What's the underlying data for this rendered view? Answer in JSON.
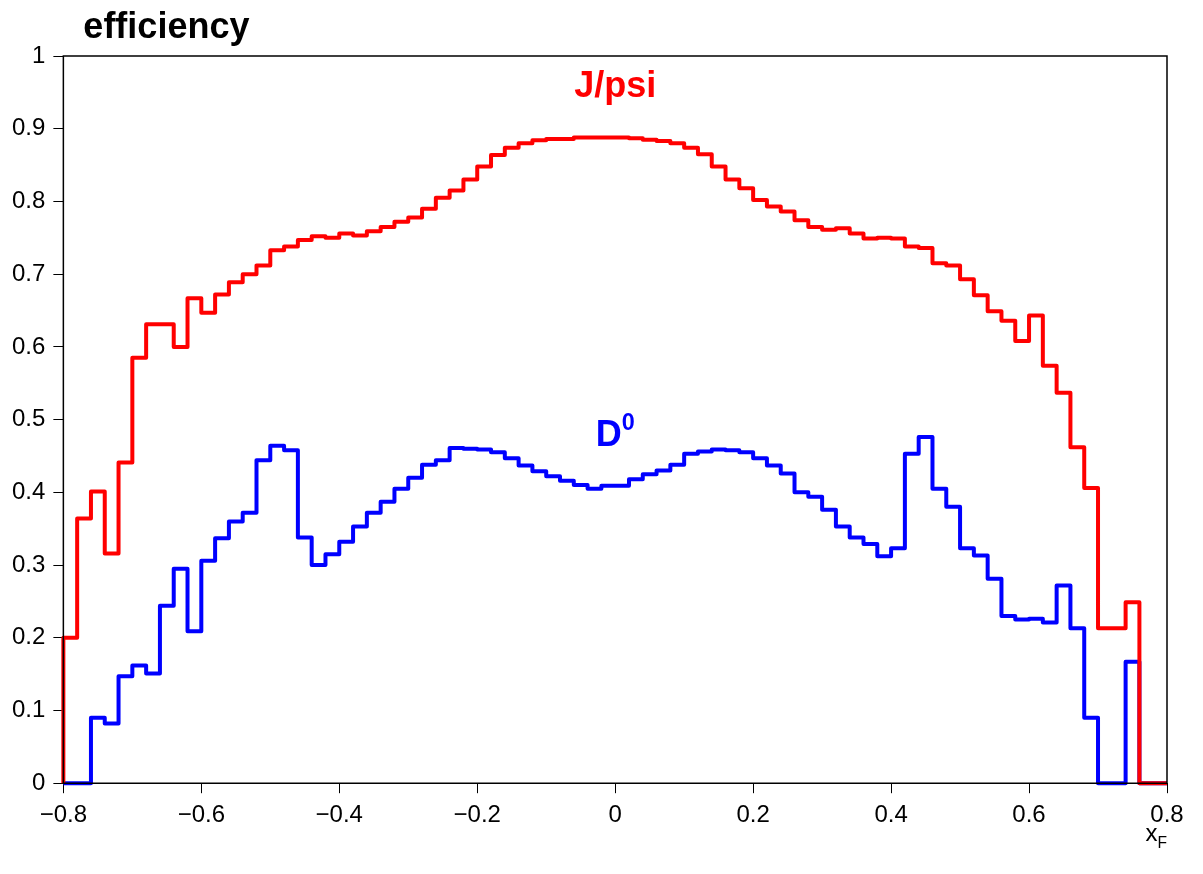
{
  "chart_data": {
    "type": "step",
    "ylabel": "efficiency",
    "xlabel": "x$_{F}$",
    "x": [
      -0.8,
      -0.78,
      -0.76,
      -0.74,
      -0.72,
      -0.7,
      -0.68,
      -0.66,
      -0.64,
      -0.62,
      -0.6,
      -0.58,
      -0.56,
      -0.54,
      -0.52,
      -0.5,
      -0.48,
      -0.46,
      -0.44,
      -0.42,
      -0.4,
      -0.38,
      -0.36,
      -0.34,
      -0.32,
      -0.3,
      -0.28,
      -0.26,
      -0.24,
      -0.22,
      -0.2,
      -0.18,
      -0.16,
      -0.14,
      -0.12,
      -0.1,
      -0.08,
      -0.06,
      -0.04,
      -0.02,
      0,
      0.02,
      0.04,
      0.06,
      0.08,
      0.1,
      0.12,
      0.14,
      0.16,
      0.18,
      0.2,
      0.22,
      0.24,
      0.26,
      0.28,
      0.3,
      0.32,
      0.34,
      0.36,
      0.38,
      0.4,
      0.42,
      0.44,
      0.46,
      0.48,
      0.5,
      0.52,
      0.54,
      0.56,
      0.58,
      0.6,
      0.62,
      0.64,
      0.66,
      0.68,
      0.7,
      0.72,
      0.74,
      0.76,
      0.78,
      0.8
    ],
    "series": [
      {
        "name": "J/psi",
        "color": "#ff0000",
        "values": [
          0,
          0.2,
          0.364,
          0.401,
          0.316,
          0.441,
          0.585,
          0.631,
          0.631,
          0.6,
          0.667,
          0.647,
          0.672,
          0.689,
          0.7,
          0.712,
          0.733,
          0.738,
          0.747,
          0.752,
          0.75,
          0.756,
          0.753,
          0.759,
          0.765,
          0.772,
          0.778,
          0.79,
          0.805,
          0.815,
          0.83,
          0.848,
          0.864,
          0.874,
          0.88,
          0.884,
          0.886,
          0.886,
          0.888,
          0.888,
          0.888,
          0.888,
          0.887,
          0.885,
          0.883,
          0.88,
          0.874,
          0.865,
          0.848,
          0.83,
          0.818,
          0.802,
          0.793,
          0.786,
          0.774,
          0.765,
          0.761,
          0.763,
          0.756,
          0.749,
          0.75,
          0.749,
          0.738,
          0.736,
          0.715,
          0.712,
          0.693,
          0.671,
          0.649,
          0.636,
          0.608,
          0.643,
          0.574,
          0.537,
          0.462,
          0.406,
          0.213,
          0.213,
          0.249,
          0,
          0
        ]
      },
      {
        "name": "D$^{0}$",
        "color": "#0000ff",
        "values": [
          0,
          0,
          0,
          0.09,
          0.082,
          0.147,
          0.162,
          0.151,
          0.244,
          0.295,
          0.209,
          0.306,
          0.337,
          0.36,
          0.372,
          0.444,
          0.464,
          0.458,
          0.338,
          0.3,
          0.315,
          0.332,
          0.353,
          0.372,
          0.387,
          0.405,
          0.42,
          0.438,
          0.444,
          0.461,
          0.46,
          0.459,
          0.455,
          0.447,
          0.437,
          0.429,
          0.422,
          0.416,
          0.41,
          0.405,
          0.409,
          0.409,
          0.418,
          0.425,
          0.43,
          0.438,
          0.453,
          0.456,
          0.459,
          0.458,
          0.455,
          0.447,
          0.437,
          0.426,
          0.4,
          0.394,
          0.376,
          0.353,
          0.338,
          0.329,
          0.312,
          0.323,
          0.453,
          0.476,
          0.405,
          0.38,
          0.323,
          0.313,
          0.281,
          0.23,
          0.225,
          0.226,
          0.221,
          0.272,
          0.213,
          0.09,
          0,
          0,
          0.167,
          0,
          0
        ]
      }
    ],
    "xlim": [
      -0.8,
      0.8
    ],
    "ylim": [
      0,
      1
    ],
    "xticks": [
      -0.8,
      -0.6,
      -0.4,
      -0.2,
      0,
      0.2,
      0.4,
      0.6,
      0.8
    ],
    "yticks": [
      0,
      0.1,
      0.2,
      0.3,
      0.4,
      0.5,
      0.6,
      0.7,
      0.8,
      0.9,
      1
    ],
    "grid": false,
    "legend": false
  }
}
